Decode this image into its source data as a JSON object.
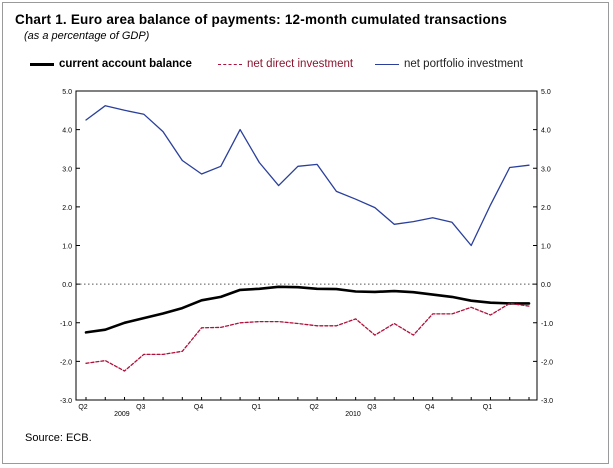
{
  "chart_data": {
    "type": "line",
    "title": "Chart 1. Euro area balance of payments: 12-month cumulated transactions",
    "subtitle": "(as a percentage of GDP)",
    "xlabel": "",
    "ylabel": "",
    "ylim": [
      -3.0,
      5.0
    ],
    "yticks": [
      5.0,
      4.0,
      3.0,
      2.0,
      1.0,
      0.0,
      -1.0,
      -2.0,
      -3.0
    ],
    "ytick_labels": [
      "5.0",
      "4.0",
      "3.0",
      "2.0",
      "1.0",
      "0.0",
      "-1.0",
      "-2.0",
      "-3.0"
    ],
    "grid": false,
    "zero_line": "dotted",
    "x_points": 24,
    "quarter_ticks": [
      {
        "label": "Q2",
        "index": 0
      },
      {
        "label": "Q3",
        "index": 3
      },
      {
        "label": "Q4",
        "index": 6
      },
      {
        "label": "Q1",
        "index": 9
      },
      {
        "label": "Q2",
        "index": 12
      },
      {
        "label": "Q3",
        "index": 15
      },
      {
        "label": "Q4",
        "index": 18
      },
      {
        "label": "Q1",
        "index": 21
      }
    ],
    "year_labels": [
      {
        "label": "2009",
        "index": 1.5
      },
      {
        "label": "2010",
        "index": 13.5
      }
    ],
    "series": [
      {
        "name": "current account balance",
        "style": "solid-thick",
        "color": "#000000",
        "values": [
          -1.25,
          -1.18,
          -1.0,
          -0.88,
          -0.76,
          -0.62,
          -0.42,
          -0.33,
          -0.15,
          -0.12,
          -0.07,
          -0.08,
          -0.12,
          -0.13,
          -0.19,
          -0.2,
          -0.18,
          -0.21,
          -0.27,
          -0.33,
          -0.43,
          -0.48,
          -0.5,
          -0.5
        ]
      },
      {
        "name": "net direct investment",
        "style": "dashed",
        "color": "#b0103a",
        "values": [
          -2.05,
          -1.98,
          -2.25,
          -1.82,
          -1.82,
          -1.74,
          -1.13,
          -1.12,
          -1.0,
          -0.97,
          -0.97,
          -1.02,
          -1.08,
          -1.08,
          -0.9,
          -1.32,
          -1.02,
          -1.32,
          -0.77,
          -0.77,
          -0.6,
          -0.8,
          -0.5,
          -0.57
        ]
      },
      {
        "name": "net portfolio investment",
        "style": "solid",
        "color": "#2a3f9c",
        "values": [
          4.25,
          4.62,
          4.5,
          4.4,
          3.95,
          3.2,
          2.85,
          3.05,
          4.0,
          3.15,
          2.55,
          3.05,
          3.1,
          2.4,
          2.2,
          1.98,
          1.55,
          1.62,
          1.72,
          1.6,
          1.0,
          2.05,
          3.02,
          3.08
        ]
      }
    ],
    "legend": "top"
  },
  "source": "Source: ECB."
}
